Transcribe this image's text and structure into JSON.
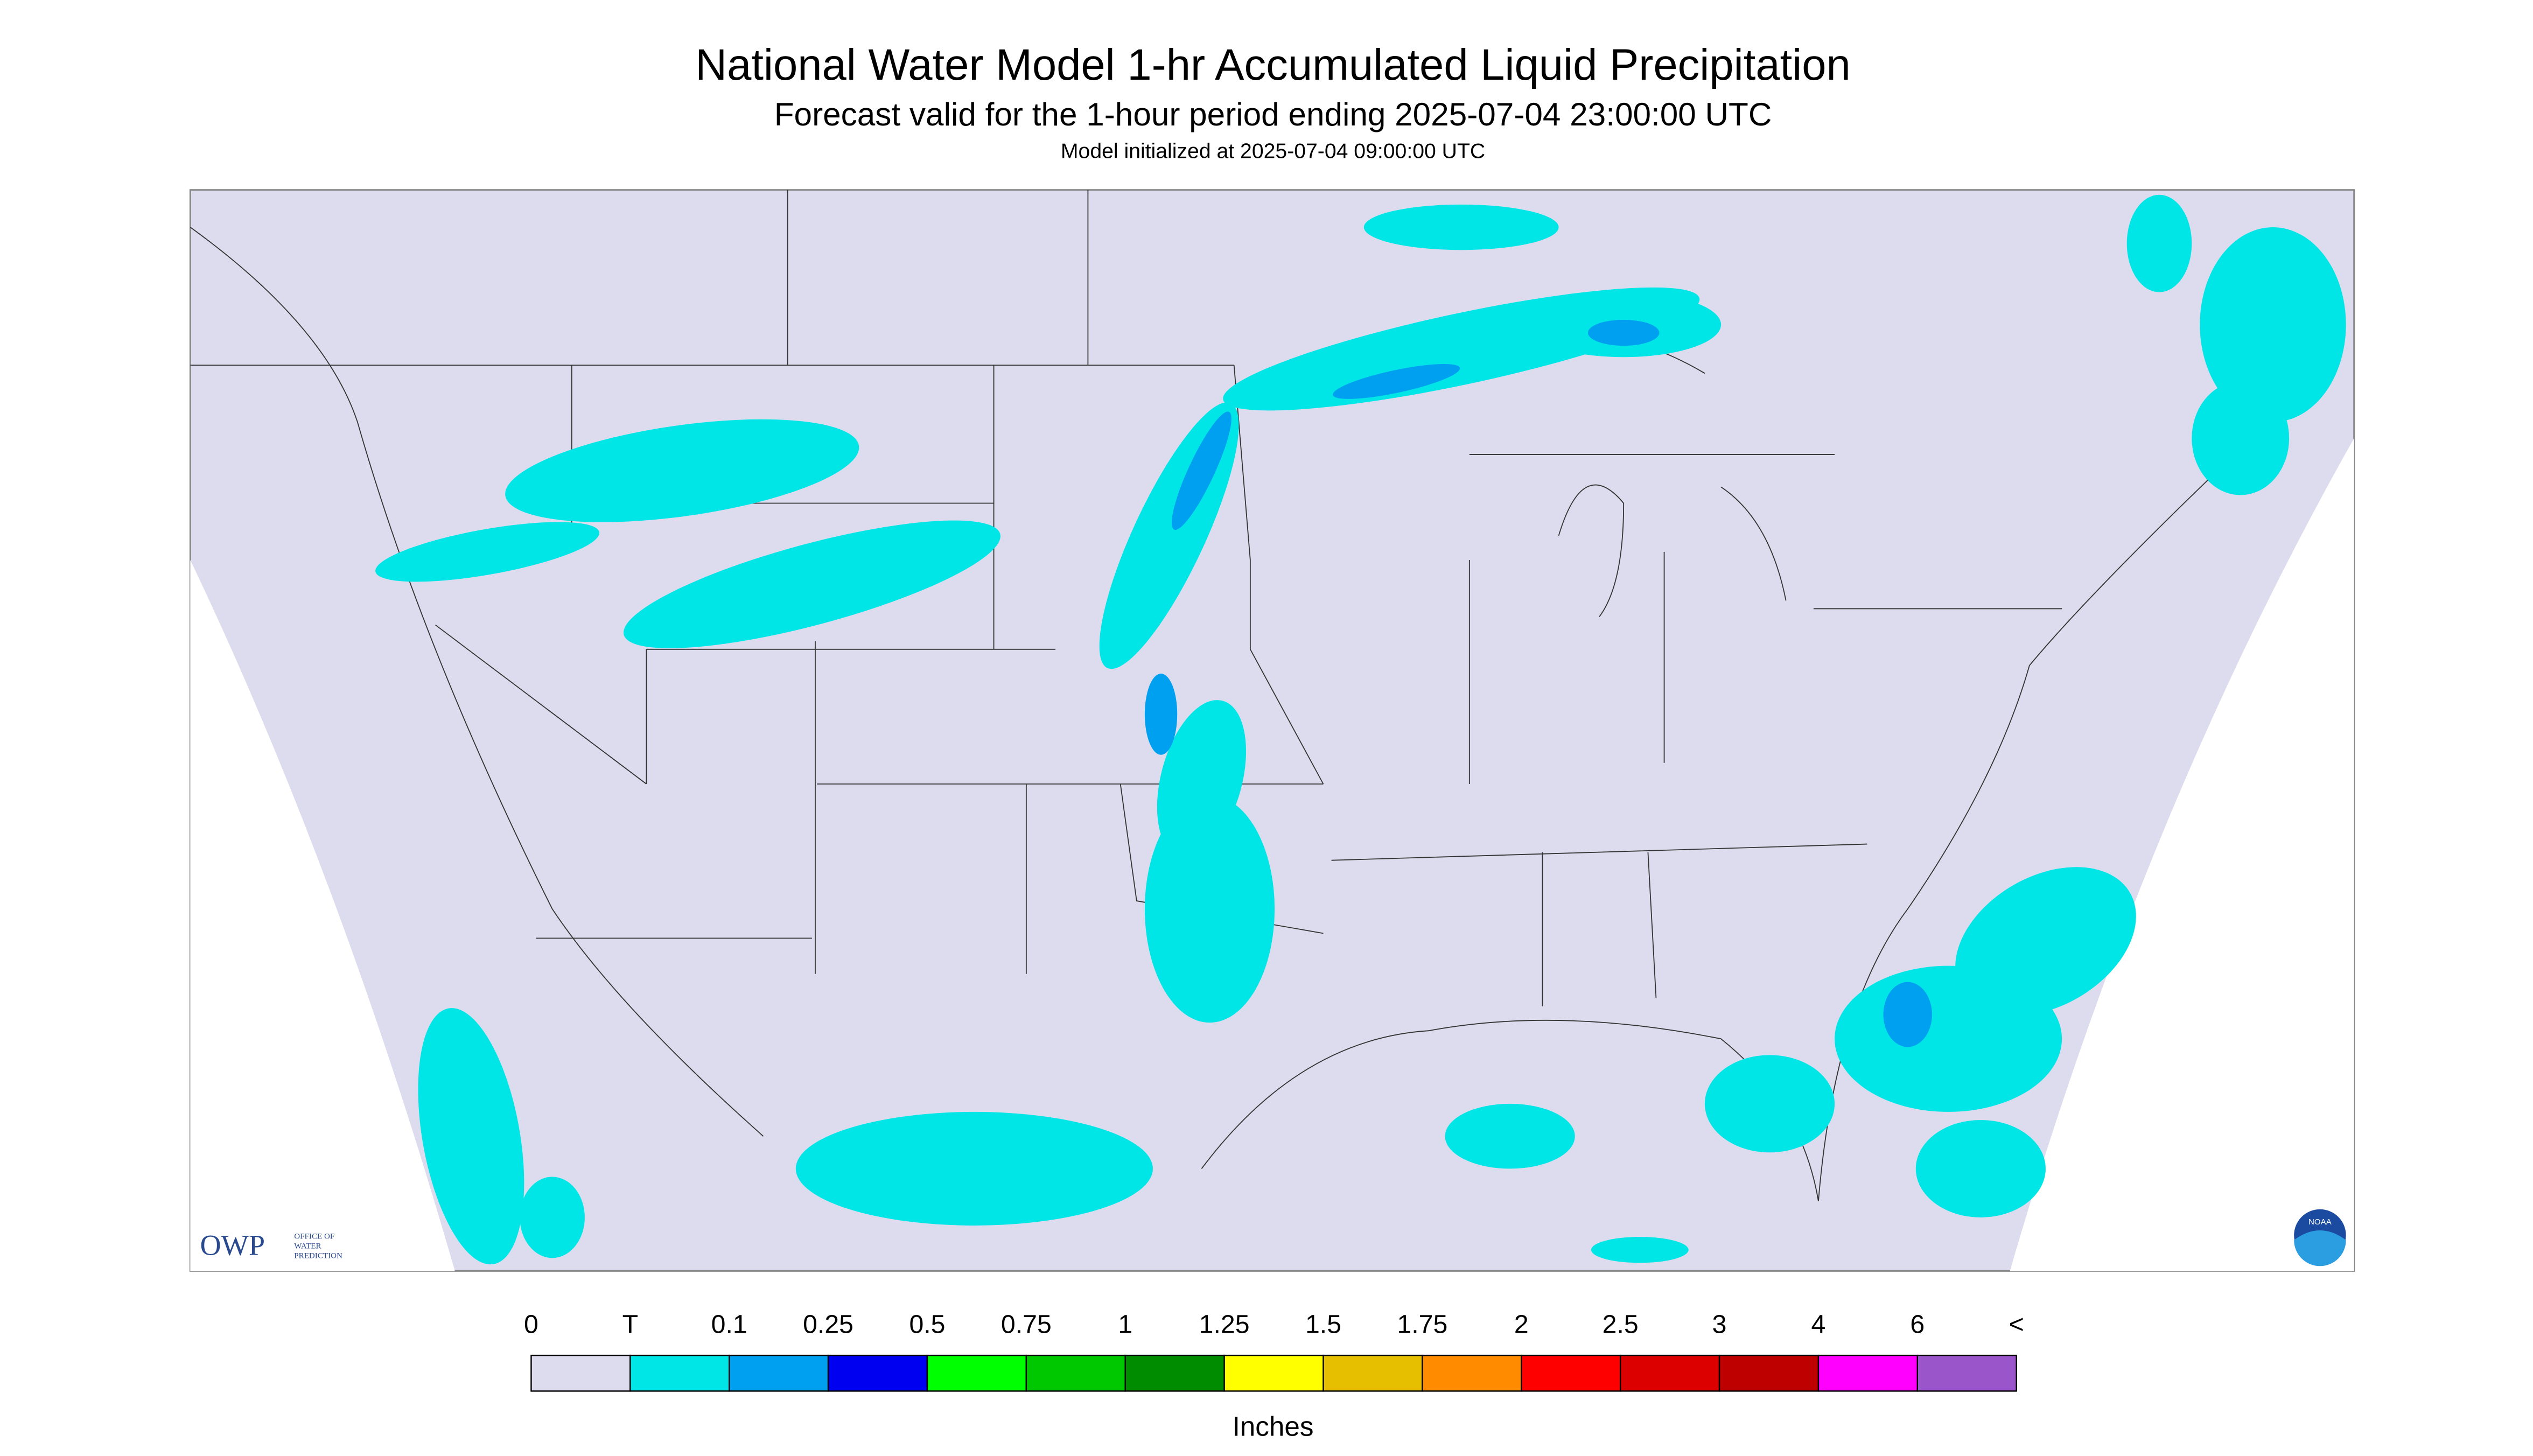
{
  "header": {
    "title": "National Water Model 1-hr Accumulated Liquid Precipitation",
    "subtitle": "Forecast valid for the 1-hour period ending 2025-07-04 23:00:00 UTC",
    "init": "Model initialized at 2025-07-04 09:00:00 UTC"
  },
  "logos": {
    "owp": "OWP",
    "owp_lines": [
      "OFFICE OF",
      "WATER",
      "PREDICTION"
    ],
    "noaa": "NOAA"
  },
  "legend": {
    "labels": [
      "0",
      "T",
      "0.1",
      "0.25",
      "0.5",
      "0.75",
      "1",
      "1.25",
      "1.5",
      "1.75",
      "2",
      "2.5",
      "3",
      "4",
      "6",
      "<"
    ],
    "colors": [
      "#dcdcee",
      "#00e6e6",
      "#00a0f0",
      "#0000f0",
      "#00ff00",
      "#00c800",
      "#008c00",
      "#ffff00",
      "#e6c000",
      "#ff8c00",
      "#ff0000",
      "#dc0000",
      "#be0000",
      "#ff00ff",
      "#9955c9"
    ],
    "unit": "Inches"
  }
}
